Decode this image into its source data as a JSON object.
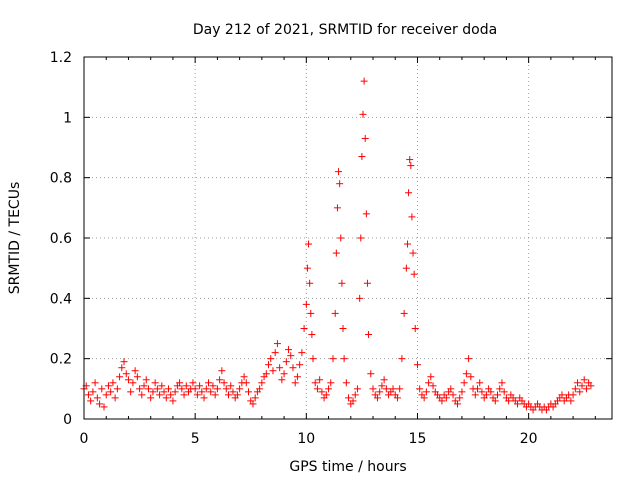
{
  "chart_data": {
    "type": "scatter",
    "title": "Day 212 of 2021, SRMTID for receiver doda",
    "xlabel": "GPS time / hours",
    "ylabel": "SRMTID / TECUs",
    "xlim": [
      0,
      23.75
    ],
    "ylim": [
      0,
      1.2
    ],
    "xticks": [
      0,
      5,
      10,
      15,
      20
    ],
    "xtick_labels": [
      "0",
      "5",
      "10",
      "15",
      "20"
    ],
    "yticks": [
      0,
      0.2,
      0.4,
      0.6,
      0.8,
      1.0,
      1.2
    ],
    "ytick_labels": [
      "0",
      "0.2",
      "0.4",
      "0.6",
      "0.8",
      "1",
      "1.2"
    ],
    "grid": true,
    "marker": "plus",
    "marker_color": "#ff0000",
    "series": [
      {
        "name": "SRMTID",
        "points": [
          [
            0.0,
            0.1
          ],
          [
            0.1,
            0.11
          ],
          [
            0.2,
            0.08
          ],
          [
            0.3,
            0.06
          ],
          [
            0.4,
            0.09
          ],
          [
            0.5,
            0.12
          ],
          [
            0.6,
            0.07
          ],
          [
            0.7,
            0.05
          ],
          [
            0.8,
            0.1
          ],
          [
            0.9,
            0.04
          ],
          [
            1.0,
            0.08
          ],
          [
            1.1,
            0.11
          ],
          [
            1.2,
            0.09
          ],
          [
            1.3,
            0.12
          ],
          [
            1.4,
            0.07
          ],
          [
            1.5,
            0.1
          ],
          [
            1.6,
            0.14
          ],
          [
            1.7,
            0.17
          ],
          [
            1.8,
            0.19
          ],
          [
            1.9,
            0.15
          ],
          [
            2.0,
            0.13
          ],
          [
            2.1,
            0.09
          ],
          [
            2.2,
            0.12
          ],
          [
            2.3,
            0.16
          ],
          [
            2.4,
            0.14
          ],
          [
            2.5,
            0.1
          ],
          [
            2.6,
            0.08
          ],
          [
            2.7,
            0.11
          ],
          [
            2.8,
            0.13
          ],
          [
            2.9,
            0.1
          ],
          [
            3.0,
            0.07
          ],
          [
            3.1,
            0.09
          ],
          [
            3.2,
            0.12
          ],
          [
            3.3,
            0.1
          ],
          [
            3.4,
            0.08
          ],
          [
            3.5,
            0.11
          ],
          [
            3.6,
            0.09
          ],
          [
            3.7,
            0.07
          ],
          [
            3.8,
            0.1
          ],
          [
            3.9,
            0.08
          ],
          [
            4.0,
            0.06
          ],
          [
            4.1,
            0.09
          ],
          [
            4.2,
            0.11
          ],
          [
            4.3,
            0.12
          ],
          [
            4.4,
            0.1
          ],
          [
            4.5,
            0.08
          ],
          [
            4.6,
            0.11
          ],
          [
            4.7,
            0.09
          ],
          [
            4.8,
            0.1
          ],
          [
            4.9,
            0.12
          ],
          [
            5.0,
            0.1
          ],
          [
            5.1,
            0.08
          ],
          [
            5.2,
            0.11
          ],
          [
            5.3,
            0.09
          ],
          [
            5.4,
            0.07
          ],
          [
            5.5,
            0.1
          ],
          [
            5.6,
            0.12
          ],
          [
            5.7,
            0.09
          ],
          [
            5.8,
            0.11
          ],
          [
            5.9,
            0.08
          ],
          [
            6.0,
            0.1
          ],
          [
            6.1,
            0.13
          ],
          [
            6.2,
            0.16
          ],
          [
            6.3,
            0.12
          ],
          [
            6.4,
            0.1
          ],
          [
            6.5,
            0.08
          ],
          [
            6.6,
            0.11
          ],
          [
            6.7,
            0.09
          ],
          [
            6.8,
            0.07
          ],
          [
            6.9,
            0.08
          ],
          [
            7.0,
            0.1
          ],
          [
            7.1,
            0.12
          ],
          [
            7.2,
            0.14
          ],
          [
            7.3,
            0.12
          ],
          [
            7.4,
            0.09
          ],
          [
            7.5,
            0.06
          ],
          [
            7.6,
            0.05
          ],
          [
            7.7,
            0.07
          ],
          [
            7.8,
            0.09
          ],
          [
            7.9,
            0.1
          ],
          [
            8.0,
            0.12
          ],
          [
            8.1,
            0.14
          ],
          [
            8.2,
            0.15
          ],
          [
            8.3,
            0.18
          ],
          [
            8.4,
            0.2
          ],
          [
            8.5,
            0.16
          ],
          [
            8.6,
            0.22
          ],
          [
            8.7,
            0.25
          ],
          [
            8.8,
            0.17
          ],
          [
            8.9,
            0.13
          ],
          [
            9.0,
            0.15
          ],
          [
            9.1,
            0.19
          ],
          [
            9.2,
            0.23
          ],
          [
            9.3,
            0.21
          ],
          [
            9.4,
            0.17
          ],
          [
            9.5,
            0.12
          ],
          [
            9.6,
            0.14
          ],
          [
            9.7,
            0.18
          ],
          [
            9.8,
            0.22
          ],
          [
            9.9,
            0.3
          ],
          [
            10.0,
            0.38
          ],
          [
            10.05,
            0.5
          ],
          [
            10.1,
            0.58
          ],
          [
            10.15,
            0.45
          ],
          [
            10.2,
            0.35
          ],
          [
            10.25,
            0.28
          ],
          [
            10.3,
            0.2
          ],
          [
            10.4,
            0.12
          ],
          [
            10.5,
            0.1
          ],
          [
            10.6,
            0.13
          ],
          [
            10.7,
            0.09
          ],
          [
            10.8,
            0.07
          ],
          [
            10.9,
            0.08
          ],
          [
            11.0,
            0.1
          ],
          [
            11.1,
            0.12
          ],
          [
            11.2,
            0.2
          ],
          [
            11.3,
            0.35
          ],
          [
            11.35,
            0.55
          ],
          [
            11.4,
            0.7
          ],
          [
            11.45,
            0.82
          ],
          [
            11.5,
            0.78
          ],
          [
            11.55,
            0.6
          ],
          [
            11.6,
            0.45
          ],
          [
            11.65,
            0.3
          ],
          [
            11.7,
            0.2
          ],
          [
            11.8,
            0.12
          ],
          [
            11.9,
            0.07
          ],
          [
            12.0,
            0.05
          ],
          [
            12.1,
            0.06
          ],
          [
            12.2,
            0.08
          ],
          [
            12.3,
            0.1
          ],
          [
            12.4,
            0.4
          ],
          [
            12.45,
            0.6
          ],
          [
            12.5,
            0.87
          ],
          [
            12.55,
            1.01
          ],
          [
            12.6,
            1.12
          ],
          [
            12.65,
            0.93
          ],
          [
            12.7,
            0.68
          ],
          [
            12.75,
            0.45
          ],
          [
            12.8,
            0.28
          ],
          [
            12.9,
            0.15
          ],
          [
            13.0,
            0.1
          ],
          [
            13.1,
            0.08
          ],
          [
            13.2,
            0.07
          ],
          [
            13.3,
            0.09
          ],
          [
            13.4,
            0.11
          ],
          [
            13.5,
            0.13
          ],
          [
            13.6,
            0.1
          ],
          [
            13.7,
            0.08
          ],
          [
            13.8,
            0.09
          ],
          [
            13.9,
            0.1
          ],
          [
            14.0,
            0.08
          ],
          [
            14.1,
            0.07
          ],
          [
            14.2,
            0.1
          ],
          [
            14.3,
            0.2
          ],
          [
            14.4,
            0.35
          ],
          [
            14.5,
            0.5
          ],
          [
            14.55,
            0.58
          ],
          [
            14.6,
            0.75
          ],
          [
            14.65,
            0.86
          ],
          [
            14.7,
            0.84
          ],
          [
            14.75,
            0.67
          ],
          [
            14.8,
            0.55
          ],
          [
            14.85,
            0.48
          ],
          [
            14.9,
            0.3
          ],
          [
            15.0,
            0.18
          ],
          [
            15.1,
            0.1
          ],
          [
            15.2,
            0.08
          ],
          [
            15.3,
            0.07
          ],
          [
            15.4,
            0.09
          ],
          [
            15.5,
            0.12
          ],
          [
            15.6,
            0.14
          ],
          [
            15.7,
            0.11
          ],
          [
            15.8,
            0.09
          ],
          [
            15.9,
            0.08
          ],
          [
            16.0,
            0.07
          ],
          [
            16.1,
            0.06
          ],
          [
            16.2,
            0.08
          ],
          [
            16.3,
            0.07
          ],
          [
            16.4,
            0.09
          ],
          [
            16.5,
            0.1
          ],
          [
            16.6,
            0.08
          ],
          [
            16.7,
            0.06
          ],
          [
            16.8,
            0.05
          ],
          [
            16.9,
            0.07
          ],
          [
            17.0,
            0.09
          ],
          [
            17.1,
            0.12
          ],
          [
            17.2,
            0.15
          ],
          [
            17.3,
            0.2
          ],
          [
            17.4,
            0.14
          ],
          [
            17.5,
            0.1
          ],
          [
            17.6,
            0.08
          ],
          [
            17.7,
            0.1
          ],
          [
            17.8,
            0.12
          ],
          [
            17.9,
            0.09
          ],
          [
            18.0,
            0.07
          ],
          [
            18.1,
            0.08
          ],
          [
            18.2,
            0.1
          ],
          [
            18.3,
            0.09
          ],
          [
            18.4,
            0.07
          ],
          [
            18.5,
            0.06
          ],
          [
            18.6,
            0.08
          ],
          [
            18.7,
            0.1
          ],
          [
            18.8,
            0.12
          ],
          [
            18.9,
            0.09
          ],
          [
            19.0,
            0.07
          ],
          [
            19.1,
            0.06
          ],
          [
            19.2,
            0.08
          ],
          [
            19.3,
            0.07
          ],
          [
            19.4,
            0.06
          ],
          [
            19.5,
            0.05
          ],
          [
            19.6,
            0.07
          ],
          [
            19.7,
            0.06
          ],
          [
            19.8,
            0.05
          ],
          [
            19.9,
            0.04
          ],
          [
            20.0,
            0.05
          ],
          [
            20.1,
            0.04
          ],
          [
            20.2,
            0.03
          ],
          [
            20.3,
            0.04
          ],
          [
            20.4,
            0.05
          ],
          [
            20.5,
            0.04
          ],
          [
            20.6,
            0.03
          ],
          [
            20.7,
            0.04
          ],
          [
            20.8,
            0.03
          ],
          [
            20.9,
            0.04
          ],
          [
            21.0,
            0.05
          ],
          [
            21.1,
            0.04
          ],
          [
            21.2,
            0.05
          ],
          [
            21.3,
            0.06
          ],
          [
            21.4,
            0.07
          ],
          [
            21.5,
            0.08
          ],
          [
            21.6,
            0.06
          ],
          [
            21.7,
            0.07
          ],
          [
            21.8,
            0.08
          ],
          [
            21.9,
            0.06
          ],
          [
            22.0,
            0.08
          ],
          [
            22.1,
            0.1
          ],
          [
            22.2,
            0.12
          ],
          [
            22.3,
            0.09
          ],
          [
            22.4,
            0.11
          ],
          [
            22.5,
            0.13
          ],
          [
            22.6,
            0.1
          ],
          [
            22.7,
            0.12
          ],
          [
            22.8,
            0.11
          ]
        ]
      }
    ]
  }
}
